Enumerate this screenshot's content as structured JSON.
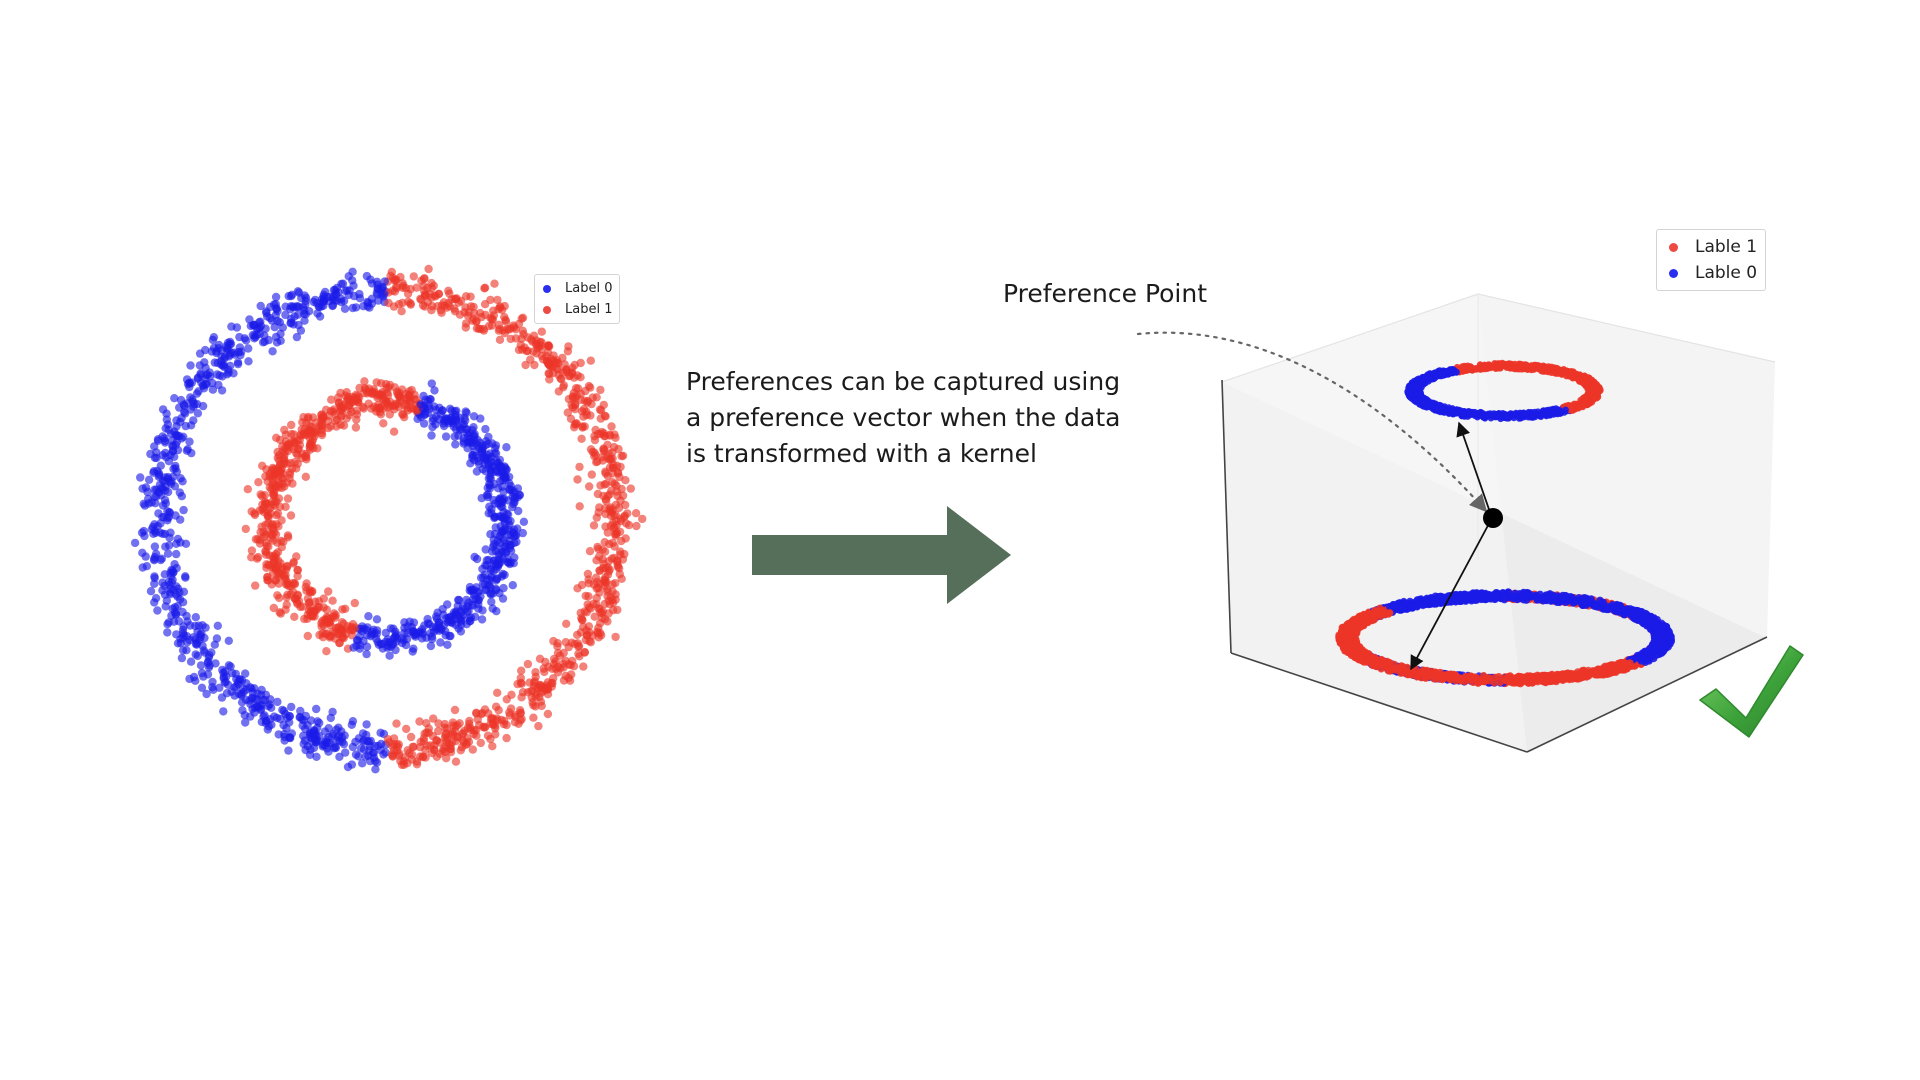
{
  "caption": {
    "line1": "Preferences can be captured using",
    "line2": "a preference vector when the data",
    "line3": "is transformed with a kernel"
  },
  "preference_point_label": "Preference Point",
  "legend_2d": [
    {
      "label": "Label 0",
      "color": "#2a2ef0"
    },
    {
      "label": "Label 1",
      "color": "#ee4a44"
    }
  ],
  "legend_3d": [
    {
      "label": "Lable 1",
      "color": "#ee4a44"
    },
    {
      "label": "Lable 0",
      "color": "#2a2ef0"
    }
  ],
  "colors": {
    "label_0": "#1c1ce8",
    "label_1": "#ec3528",
    "arrow": "#566f5a",
    "check": "#3fa03a"
  },
  "icons": [
    "right-arrow-icon",
    "checkmark-icon"
  ]
}
